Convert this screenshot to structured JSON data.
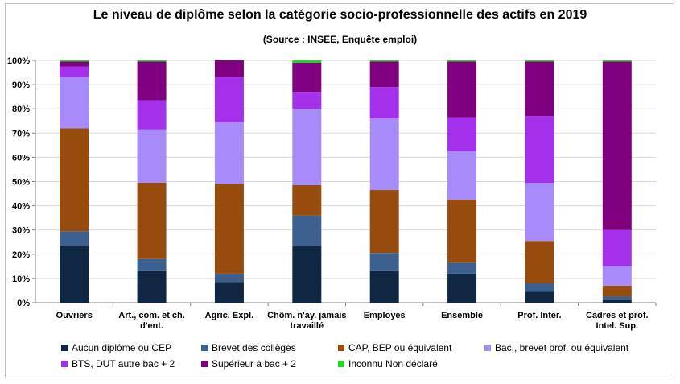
{
  "chart_data": {
    "type": "bar",
    "stacked": true,
    "title": "Le niveau de diplôme selon la catégorie socio-professionnelle  des actifs en 2019",
    "subtitle": "(Source : INSEE, Enquête emploi)",
    "xlabel": "",
    "ylabel": "",
    "ylim": [
      0,
      100
    ],
    "yticks": [
      "0%",
      "10%",
      "20%",
      "30%",
      "40%",
      "50%",
      "60%",
      "70%",
      "80%",
      "90%",
      "100%"
    ],
    "grid": true,
    "legend_position": "bottom",
    "categories": [
      [
        "Ouvriers"
      ],
      [
        "Art., com. et ch.",
        "d'ent."
      ],
      [
        "Agric. Expl."
      ],
      [
        "Chôm. n'ay. jamais",
        "travaillé"
      ],
      [
        "Employés"
      ],
      [
        "Ensemble"
      ],
      [
        "Prof. Inter."
      ],
      [
        "Cadres et prof.",
        "Intel. Sup."
      ]
    ],
    "series": [
      {
        "name": "Aucun diplôme ou CEP",
        "color": "#0f2742",
        "values": [
          23.5,
          13,
          8.5,
          23.5,
          13,
          12,
          4.5,
          1
        ]
      },
      {
        "name": "Brevet des collèges",
        "color": "#3b5f8f",
        "values": [
          6,
          5,
          3.5,
          12.5,
          7.5,
          4.5,
          3.5,
          1.5
        ]
      },
      {
        "name": "CAP, BEP ou équivalent",
        "color": "#974b0c",
        "values": [
          42.5,
          31.5,
          37,
          12.5,
          26,
          26,
          17.5,
          4.5
        ]
      },
      {
        "name": "Bac.,  brevet prof. ou équivalent",
        "color": "#a78bfa",
        "values": [
          21,
          22,
          25.5,
          31.5,
          29.5,
          20,
          24,
          8
        ]
      },
      {
        "name": "BTS, DUT  autre bac + 2",
        "color": "#a530ec",
        "values": [
          4.5,
          12,
          18.5,
          7,
          13,
          14,
          27.5,
          15
        ]
      },
      {
        "name": "Supérieur à bac + 2",
        "color": "#800080",
        "values": [
          2,
          16,
          7,
          12,
          10.5,
          23,
          22.5,
          69.5
        ]
      },
      {
        "name": "Inconnu Non déclaré",
        "color": "#22d622",
        "values": [
          0.5,
          0.5,
          0,
          1,
          0.5,
          0.5,
          0.5,
          0.5
        ]
      }
    ]
  }
}
